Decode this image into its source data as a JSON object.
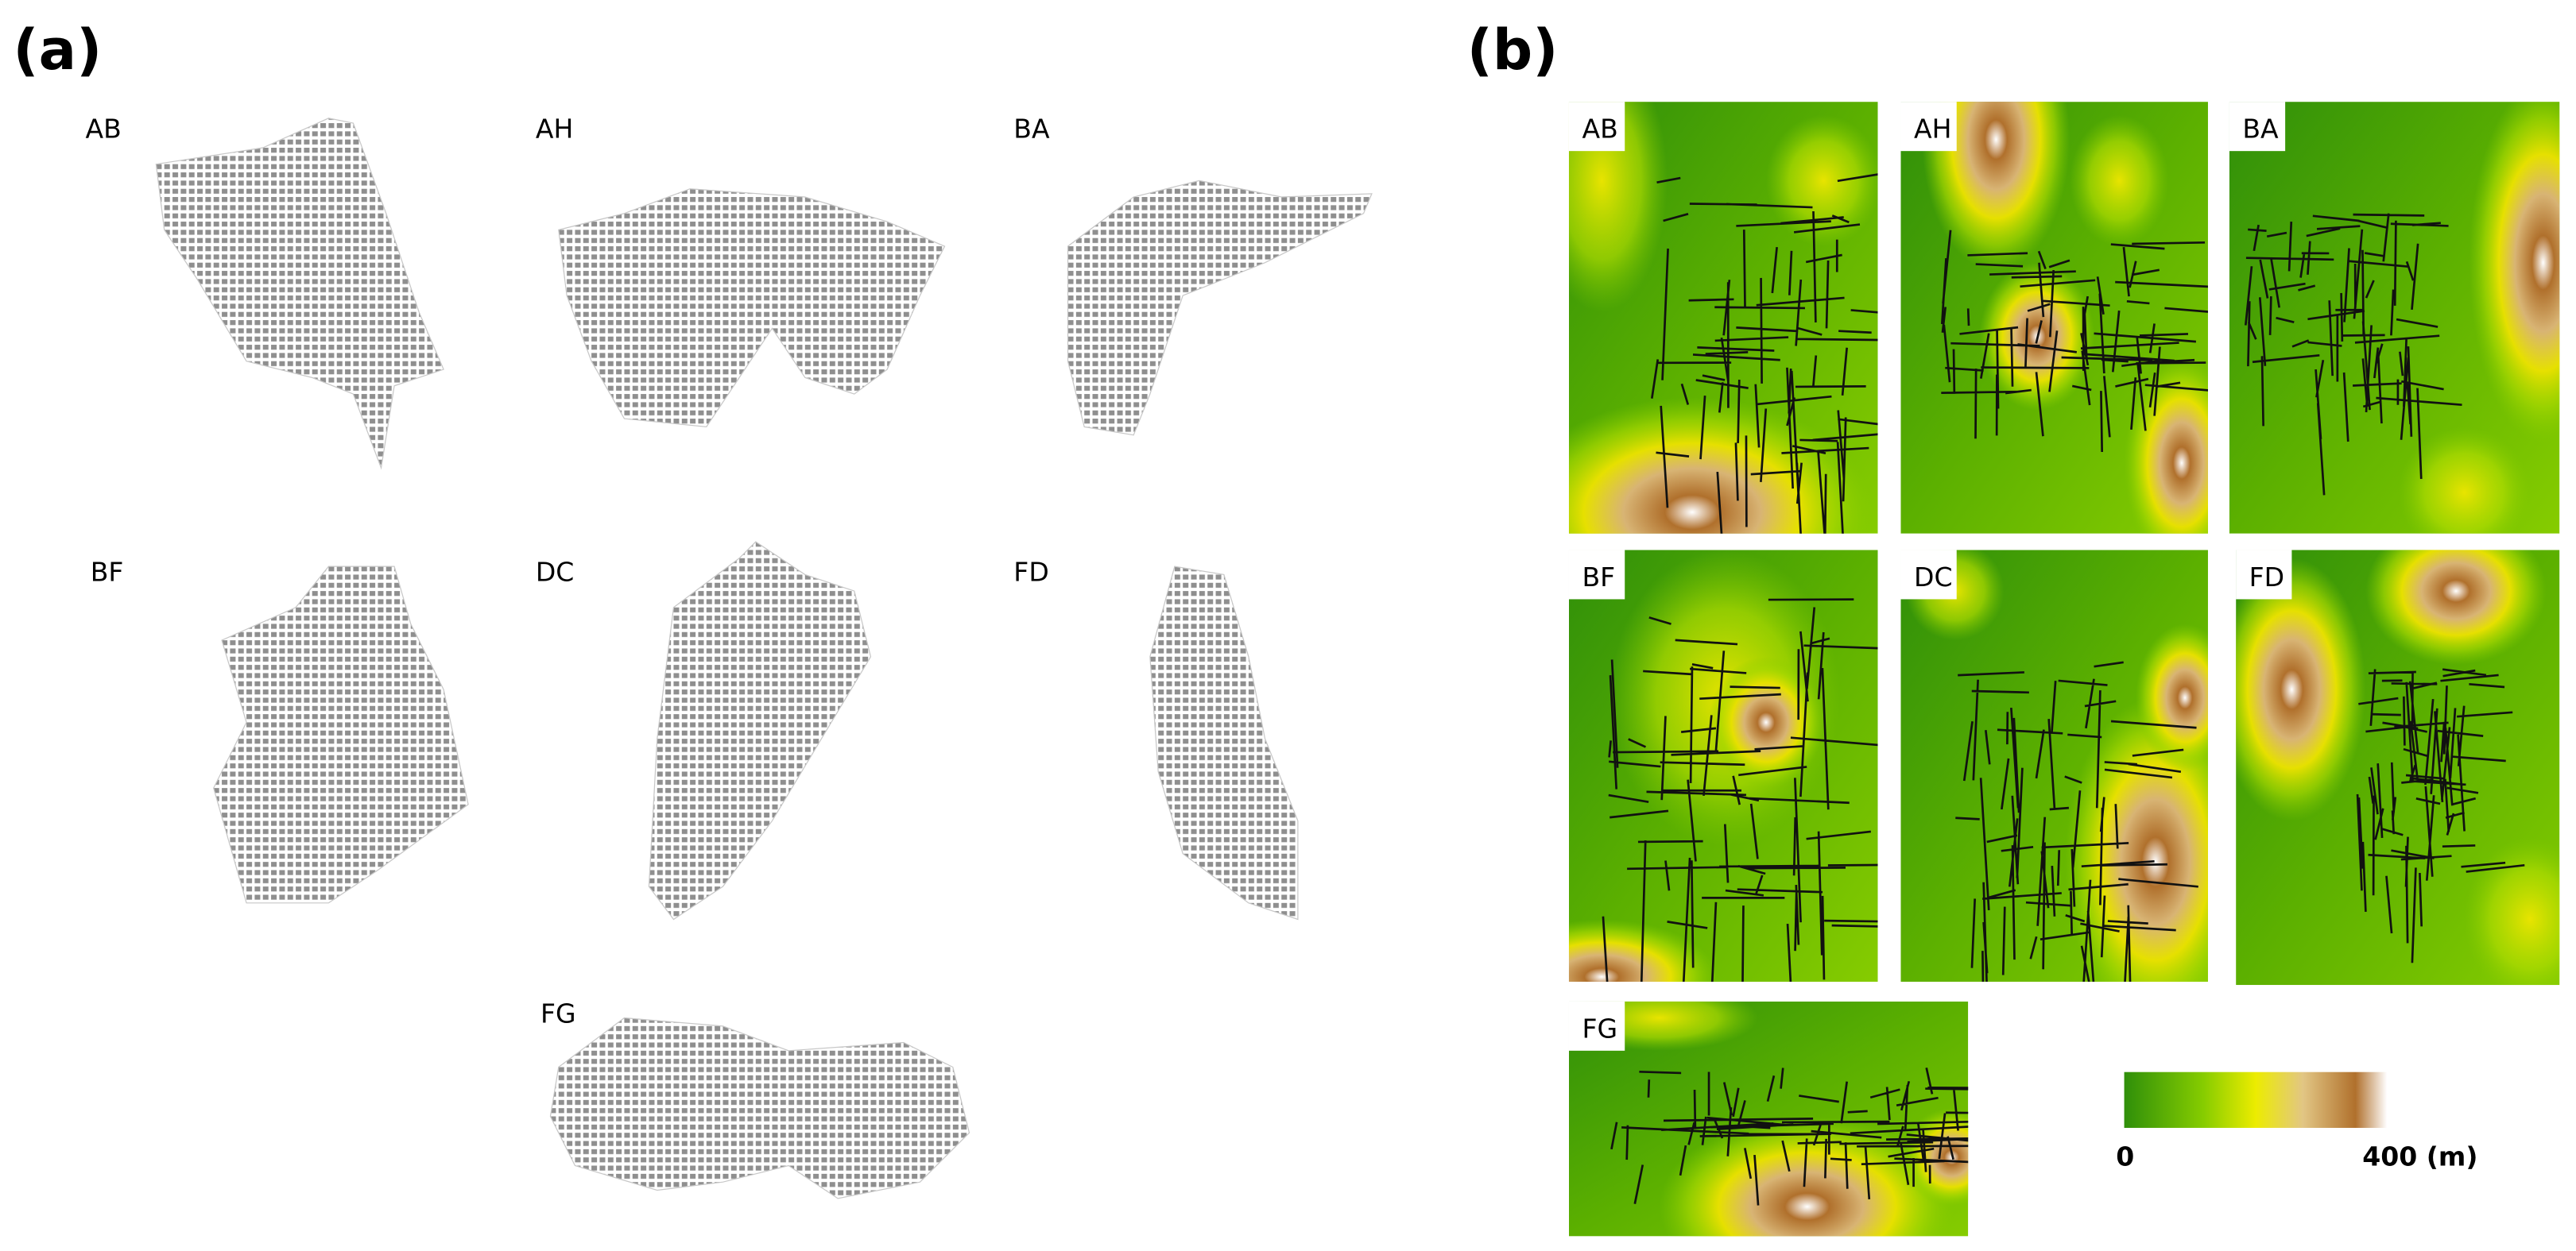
{
  "panels": [
    {
      "label": "(a)",
      "maps": [
        {
          "label": "AB"
        },
        {
          "label": "AH"
        },
        {
          "label": "BA"
        },
        {
          "label": "BF"
        },
        {
          "label": "DC"
        },
        {
          "label": "FD"
        },
        {
          "label": "FG"
        }
      ]
    },
    {
      "label": "(b)",
      "maps": [
        {
          "label": "AB"
        },
        {
          "label": "AH"
        },
        {
          "label": "BA"
        },
        {
          "label": "BF"
        },
        {
          "label": "DC"
        },
        {
          "label": "FD"
        },
        {
          "label": "FG"
        }
      ]
    }
  ],
  "legend": {
    "min_label": "0",
    "max_label": "400 (m)"
  }
}
